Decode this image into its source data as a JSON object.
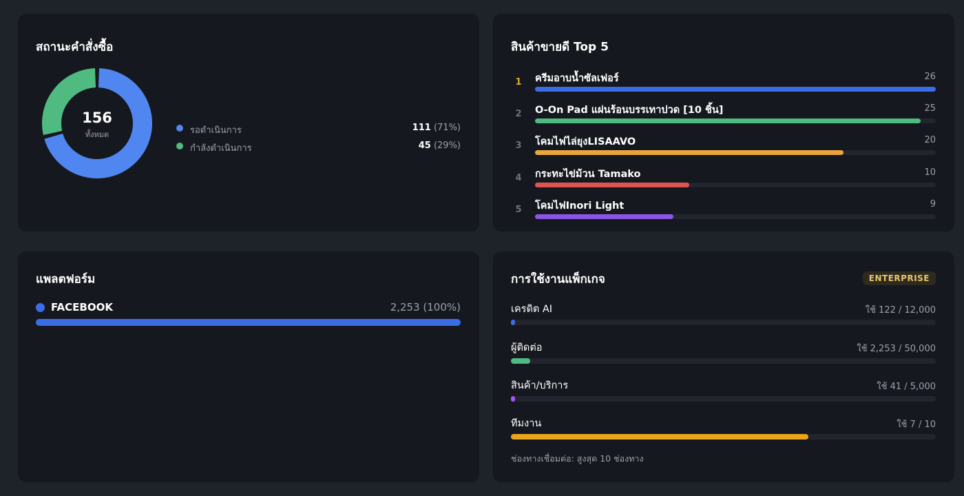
{
  "order_status": {
    "title": "สถานะคำสั่งซื้อ",
    "total": "156",
    "total_label": "ทั้งหมด",
    "items": [
      {
        "label": "รอดำเนินการ",
        "count": "111",
        "pct": "(71%)",
        "share": 0.71,
        "color": "#4f86f0"
      },
      {
        "label": "กำลังดำเนินการ",
        "count": "45",
        "pct": "(29%)",
        "share": 0.29,
        "color": "#4fbb80"
      }
    ]
  },
  "top_products": {
    "title": "สินค้าขายดี Top 5",
    "max": 26,
    "items": [
      {
        "rank": "1",
        "name": "ครีมอาบน้ำซัลเฟอร์",
        "count": "26",
        "value": 26,
        "color": "#3b6ee6",
        "rank_color": "#e6a82a"
      },
      {
        "rank": "2",
        "name": "O-On Pad แผ่นร้อนบรรเทาปวด [10 ชิ้น]",
        "count": "25",
        "value": 25,
        "color": "#4fbb80",
        "rank_color": "#6b7280"
      },
      {
        "rank": "3",
        "name": "โคมไฟไล่ยุงLISAAVO",
        "count": "20",
        "value": 20,
        "color": "#eaa53b",
        "rank_color": "#6b7280"
      },
      {
        "rank": "4",
        "name": "กระทะไข่ม้วน Tamako",
        "count": "10",
        "value": 10,
        "color": "#dc5550",
        "rank_color": "#6b7280"
      },
      {
        "rank": "5",
        "name": "โคมไฟInori Light",
        "count": "9",
        "value": 9,
        "color": "#8a56e6",
        "rank_color": "#6b7280"
      }
    ]
  },
  "platform": {
    "title": "แพลตฟอร์ม",
    "name": "FACEBOOK",
    "value": "2,253 (100%)",
    "share": 1.0,
    "color": "#3b6ee6"
  },
  "package_usage": {
    "title": "การใช้งานแพ็กเกจ",
    "badge": "ENTERPRISE",
    "items": [
      {
        "label": "เครดิต AI",
        "value": "ใช้ 122 / 12,000",
        "used": 122,
        "limit": 12000,
        "color": "#3b6ee6"
      },
      {
        "label": "ผู้ติดต่อ",
        "value": "ใช้ 2,253 / 50,000",
        "used": 2253,
        "limit": 50000,
        "color": "#4fbb80"
      },
      {
        "label": "สินค้า/บริการ",
        "value": "ใช้ 41 / 5,000",
        "used": 41,
        "limit": 5000,
        "color": "#a855f7"
      },
      {
        "label": "ทีมงาน",
        "value": "ใช้ 7 / 10",
        "used": 7,
        "limit": 10,
        "color": "#eaa51c"
      }
    ],
    "note": "ช่องทางเชื่อมต่อ: สูงสุด 10 ช่องทาง"
  }
}
